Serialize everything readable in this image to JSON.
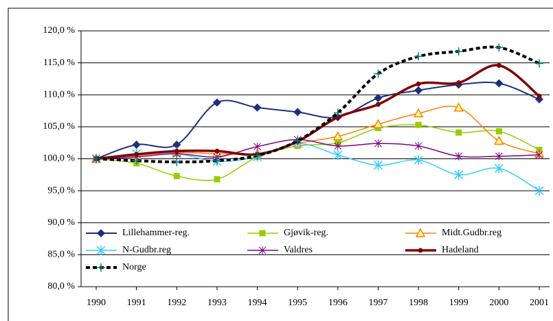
{
  "chart_data": {
    "type": "line",
    "categories": [
      "1990",
      "1991",
      "1992",
      "1993",
      "1994",
      "1995",
      "1996",
      "1997",
      "1998",
      "1999",
      "2000",
      "2001"
    ],
    "ylim": [
      80,
      120
    ],
    "yticks": [
      {
        "value": 80,
        "label": "80,0 %"
      },
      {
        "value": 85,
        "label": "85,0 %"
      },
      {
        "value": 90,
        "label": "90,0 %"
      },
      {
        "value": 95,
        "label": "95,0 %"
      },
      {
        "value": 100,
        "label": "100,0 %"
      },
      {
        "value": 105,
        "label": "105,0 %"
      },
      {
        "value": 110,
        "label": "110,0 %"
      },
      {
        "value": 115,
        "label": "115,0 %"
      },
      {
        "value": 120,
        "label": "120,0 %"
      }
    ],
    "grid": true,
    "series": [
      {
        "name": "Lillehammer-reg.",
        "color": "#1f2f80",
        "marker": "diamond",
        "values": [
          100,
          102.2,
          102.2,
          108.8,
          108,
          107.3,
          106.5,
          109.5,
          110.7,
          111.6,
          111.8,
          109.3
        ]
      },
      {
        "name": "Gjøvik-reg.",
        "color": "#99cc00",
        "marker": "square",
        "values": [
          100,
          99.3,
          97.3,
          96.8,
          100.3,
          102,
          102.5,
          104.8,
          105.3,
          104.1,
          104.3,
          101.4
        ]
      },
      {
        "name": "Midt.Gudbr.reg",
        "color": "#ff8000",
        "marker": "triangle",
        "values": [
          100,
          100.5,
          101,
          100.8,
          100.8,
          102.4,
          103.5,
          105.4,
          107.1,
          108,
          102.8,
          100.8
        ]
      },
      {
        "name": "N-Gudbr.reg",
        "color": "#33ccff",
        "marker": "x",
        "values": [
          100,
          100.8,
          100.8,
          99.6,
          100.3,
          102.4,
          100.6,
          99,
          99.8,
          97.5,
          98.5,
          95
        ]
      },
      {
        "name": "Valdres",
        "color": "#800080",
        "marker": "star",
        "values": [
          100,
          100.3,
          100.8,
          100.3,
          101.9,
          103,
          102,
          102.4,
          102,
          100.4,
          100.4,
          100.6
        ]
      },
      {
        "name": "Hadeland",
        "color": "#800000",
        "marker": "circle",
        "values": [
          100,
          100.7,
          101.2,
          101.2,
          100.7,
          102.7,
          106.5,
          108.5,
          111.7,
          111.9,
          114.6,
          109.8
        ]
      },
      {
        "name": "Norge",
        "color": "#000000",
        "marker": "plus",
        "dash": true,
        "values": [
          100,
          99.7,
          99.5,
          99.7,
          100.5,
          102.8,
          107.2,
          113.3,
          116,
          116.8,
          117.4,
          114.9
        ]
      }
    ]
  }
}
